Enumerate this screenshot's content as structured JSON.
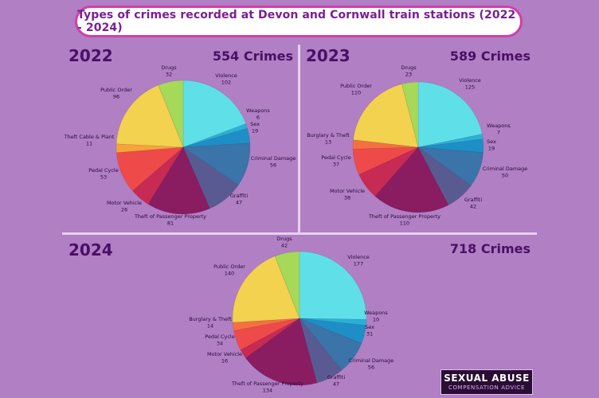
{
  "title": "Types of crimes recorded at Devon and Cornwall train stations (2022 - 2024)",
  "badge": {
    "line1": "SEXUAL ABUSE",
    "line2": "COMPENSATION ADVICE"
  },
  "colors": {
    "Violence": "#5fe0e8",
    "Weapons": "#2ab0d8",
    "Sex": "#1e8fc6",
    "Criminal Damage": "#3a74a8",
    "Graffiti": "#5a5a92",
    "Theft of Passenger Property": "#8a1c62",
    "Motor Vehicle": "#c72a52",
    "Pedal Cycle": "#ee4a4a",
    "Burglary & Theft": "#f47040",
    "Theft Cable & Plant": "#f9a23a",
    "Public Order": "#f2d24e",
    "Drugs": "#a6d85a"
  },
  "chart_data": [
    {
      "type": "pie",
      "year": "2022",
      "total_label": "554 Crimes",
      "slices": [
        {
          "label": "Violence",
          "value": 102
        },
        {
          "label": "Weapons",
          "value": 6
        },
        {
          "label": "Sex",
          "value": 19
        },
        {
          "label": "Criminal Damage",
          "value": 56
        },
        {
          "label": "Graffiti",
          "value": 47
        },
        {
          "label": "Theft of Passenger Property",
          "value": 81
        },
        {
          "label": "Motor Vehicle",
          "value": 26
        },
        {
          "label": "Pedal Cycle",
          "value": 53
        },
        {
          "label": "Theft Cable & Plant",
          "value": 11
        },
        {
          "label": "Public Order",
          "value": 96
        },
        {
          "label": "Drugs",
          "value": 32
        }
      ]
    },
    {
      "type": "pie",
      "year": "2023",
      "total_label": "589 Crimes",
      "slices": [
        {
          "label": "Violence",
          "value": 125
        },
        {
          "label": "Weapons",
          "value": 7
        },
        {
          "label": "Sex",
          "value": 19
        },
        {
          "label": "Criminal Damage",
          "value": 50
        },
        {
          "label": "Graffiti",
          "value": 42
        },
        {
          "label": "Theft of Passenger Property",
          "value": 110
        },
        {
          "label": "Motor Vehicle",
          "value": 38
        },
        {
          "label": "Pedal Cycle",
          "value": 37
        },
        {
          "label": "Burglary & Theft",
          "value": 13
        },
        {
          "label": "Public Order",
          "value": 110
        },
        {
          "label": "Drugs",
          "value": 23
        }
      ]
    },
    {
      "type": "pie",
      "year": "2024",
      "total_label": "718 Crimes",
      "slices": [
        {
          "label": "Violence",
          "value": 177
        },
        {
          "label": "Weapons",
          "value": 10
        },
        {
          "label": "Sex",
          "value": 31
        },
        {
          "label": "Criminal Damage",
          "value": 56
        },
        {
          "label": "Graffiti",
          "value": 47
        },
        {
          "label": "Theft of Passenger Property",
          "value": 134
        },
        {
          "label": "Motor Vehicle",
          "value": 16
        },
        {
          "label": "Pedal Cycle",
          "value": 34
        },
        {
          "label": "Burglary & Theft",
          "value": 14
        },
        {
          "label": "Public Order",
          "value": 140
        },
        {
          "label": "Drugs",
          "value": 42
        }
      ]
    }
  ]
}
